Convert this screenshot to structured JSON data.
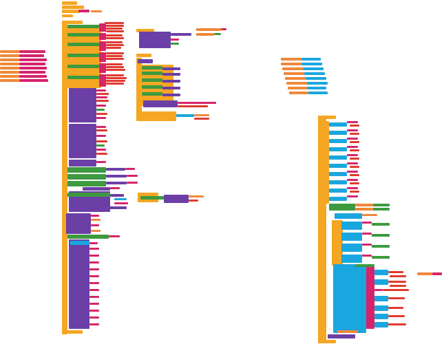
{
  "workspace": {
    "background": "#ffffff",
    "palette": {
      "control": "#f5a623",
      "component": "#6b3fa6",
      "logic": "#3d9a3f",
      "text": "#d6246b",
      "math": "#1aa6df",
      "variable": "#f0883a"
    }
  }
}
